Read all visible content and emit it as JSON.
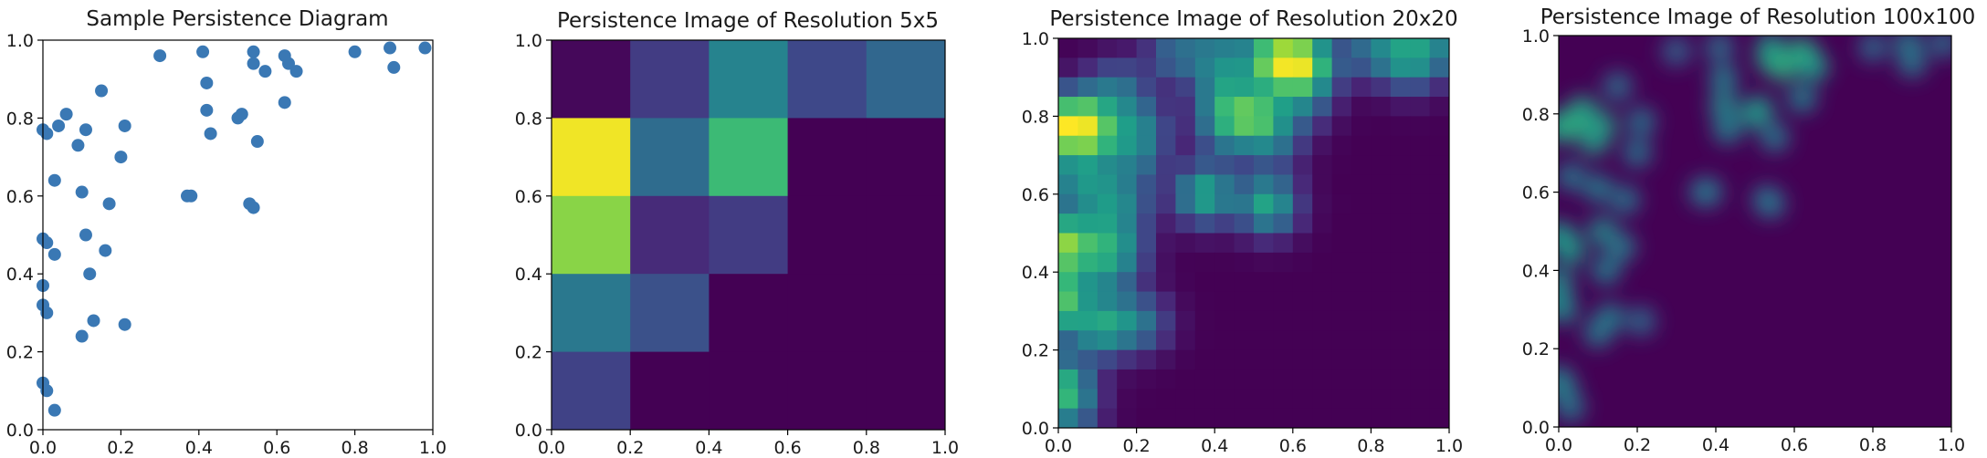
{
  "chart_data": [
    {
      "type": "scatter",
      "title": "Sample Persistence Diagram",
      "xlabel": "",
      "ylabel": "",
      "xlim": [
        0,
        1
      ],
      "ylim": [
        0,
        1
      ],
      "xticks": [
        "0.0",
        "0.2",
        "0.4",
        "0.6",
        "0.8",
        "1.0"
      ],
      "yticks": [
        "0.0",
        "0.2",
        "0.4",
        "0.6",
        "0.8",
        "1.0"
      ],
      "grid": false,
      "marker_color": "#3a78b4",
      "points": [
        [
          0.0,
          0.77
        ],
        [
          0.01,
          0.76
        ],
        [
          0.04,
          0.78
        ],
        [
          0.06,
          0.81
        ],
        [
          0.09,
          0.73
        ],
        [
          0.11,
          0.77
        ],
        [
          0.03,
          0.64
        ],
        [
          0.1,
          0.61
        ],
        [
          0.0,
          0.49
        ],
        [
          0.01,
          0.48
        ],
        [
          0.03,
          0.45
        ],
        [
          0.11,
          0.5
        ],
        [
          0.0,
          0.37
        ],
        [
          0.0,
          0.32
        ],
        [
          0.01,
          0.3
        ],
        [
          0.12,
          0.4
        ],
        [
          0.13,
          0.28
        ],
        [
          0.1,
          0.24
        ],
        [
          0.15,
          0.87
        ],
        [
          0.17,
          0.58
        ],
        [
          0.16,
          0.46
        ],
        [
          0.2,
          0.7
        ],
        [
          0.21,
          0.78
        ],
        [
          0.21,
          0.27
        ],
        [
          0.0,
          0.12
        ],
        [
          0.01,
          0.1
        ],
        [
          0.03,
          0.05
        ],
        [
          0.3,
          0.96
        ],
        [
          0.37,
          0.6
        ],
        [
          0.38,
          0.6
        ],
        [
          0.41,
          0.97
        ],
        [
          0.42,
          0.89
        ],
        [
          0.42,
          0.82
        ],
        [
          0.43,
          0.76
        ],
        [
          0.5,
          0.8
        ],
        [
          0.51,
          0.81
        ],
        [
          0.53,
          0.58
        ],
        [
          0.54,
          0.57
        ],
        [
          0.54,
          0.97
        ],
        [
          0.54,
          0.94
        ],
        [
          0.55,
          0.74
        ],
        [
          0.57,
          0.92
        ],
        [
          0.62,
          0.96
        ],
        [
          0.63,
          0.94
        ],
        [
          0.62,
          0.84
        ],
        [
          0.65,
          0.92
        ],
        [
          0.8,
          0.97
        ],
        [
          0.89,
          0.98
        ],
        [
          0.9,
          0.93
        ],
        [
          0.98,
          0.98
        ]
      ]
    },
    {
      "type": "heatmap",
      "title": "Persistence Image of Resolution 5x5",
      "xlabel": "",
      "ylabel": "",
      "xlim": [
        0,
        1
      ],
      "ylim": [
        0,
        1
      ],
      "xticks": [
        "0.0",
        "0.2",
        "0.4",
        "0.6",
        "0.8",
        "1.0"
      ],
      "yticks": [
        "0.0",
        "0.2",
        "0.4",
        "0.6",
        "0.8",
        "1.0"
      ],
      "colormap": "viridis",
      "rows_top_to_bottom": [
        [
          0.02,
          0.18,
          0.45,
          0.22,
          0.33
        ],
        [
          0.98,
          0.35,
          0.68,
          0.0,
          0.0
        ],
        [
          0.82,
          0.12,
          0.18,
          0.0,
          0.0
        ],
        [
          0.4,
          0.25,
          0.0,
          0.0,
          0.0
        ],
        [
          0.2,
          0.0,
          0.0,
          0.0,
          0.0
        ]
      ]
    },
    {
      "type": "heatmap",
      "title": "Persistence Image of Resolution 20x20",
      "xlabel": "",
      "ylabel": "",
      "xlim": [
        0,
        1
      ],
      "ylim": [
        0,
        1
      ],
      "xticks": [
        "0.0",
        "0.2",
        "0.4",
        "0.6",
        "0.8",
        "1.0"
      ],
      "yticks": [
        "0.0",
        "0.2",
        "0.4",
        "0.6",
        "0.8",
        "1.0"
      ],
      "colormap": "viridis"
    },
    {
      "type": "heatmap",
      "title": "Persistence Image of Resolution 100x100",
      "xlabel": "",
      "ylabel": "",
      "xlim": [
        0,
        1
      ],
      "ylim": [
        0,
        1
      ],
      "xticks": [
        "0.0",
        "0.2",
        "0.4",
        "0.6",
        "0.8",
        "1.0"
      ],
      "yticks": [
        "0.0",
        "0.2",
        "0.4",
        "0.6",
        "0.8",
        "1.0"
      ],
      "colormap": "viridis"
    }
  ]
}
